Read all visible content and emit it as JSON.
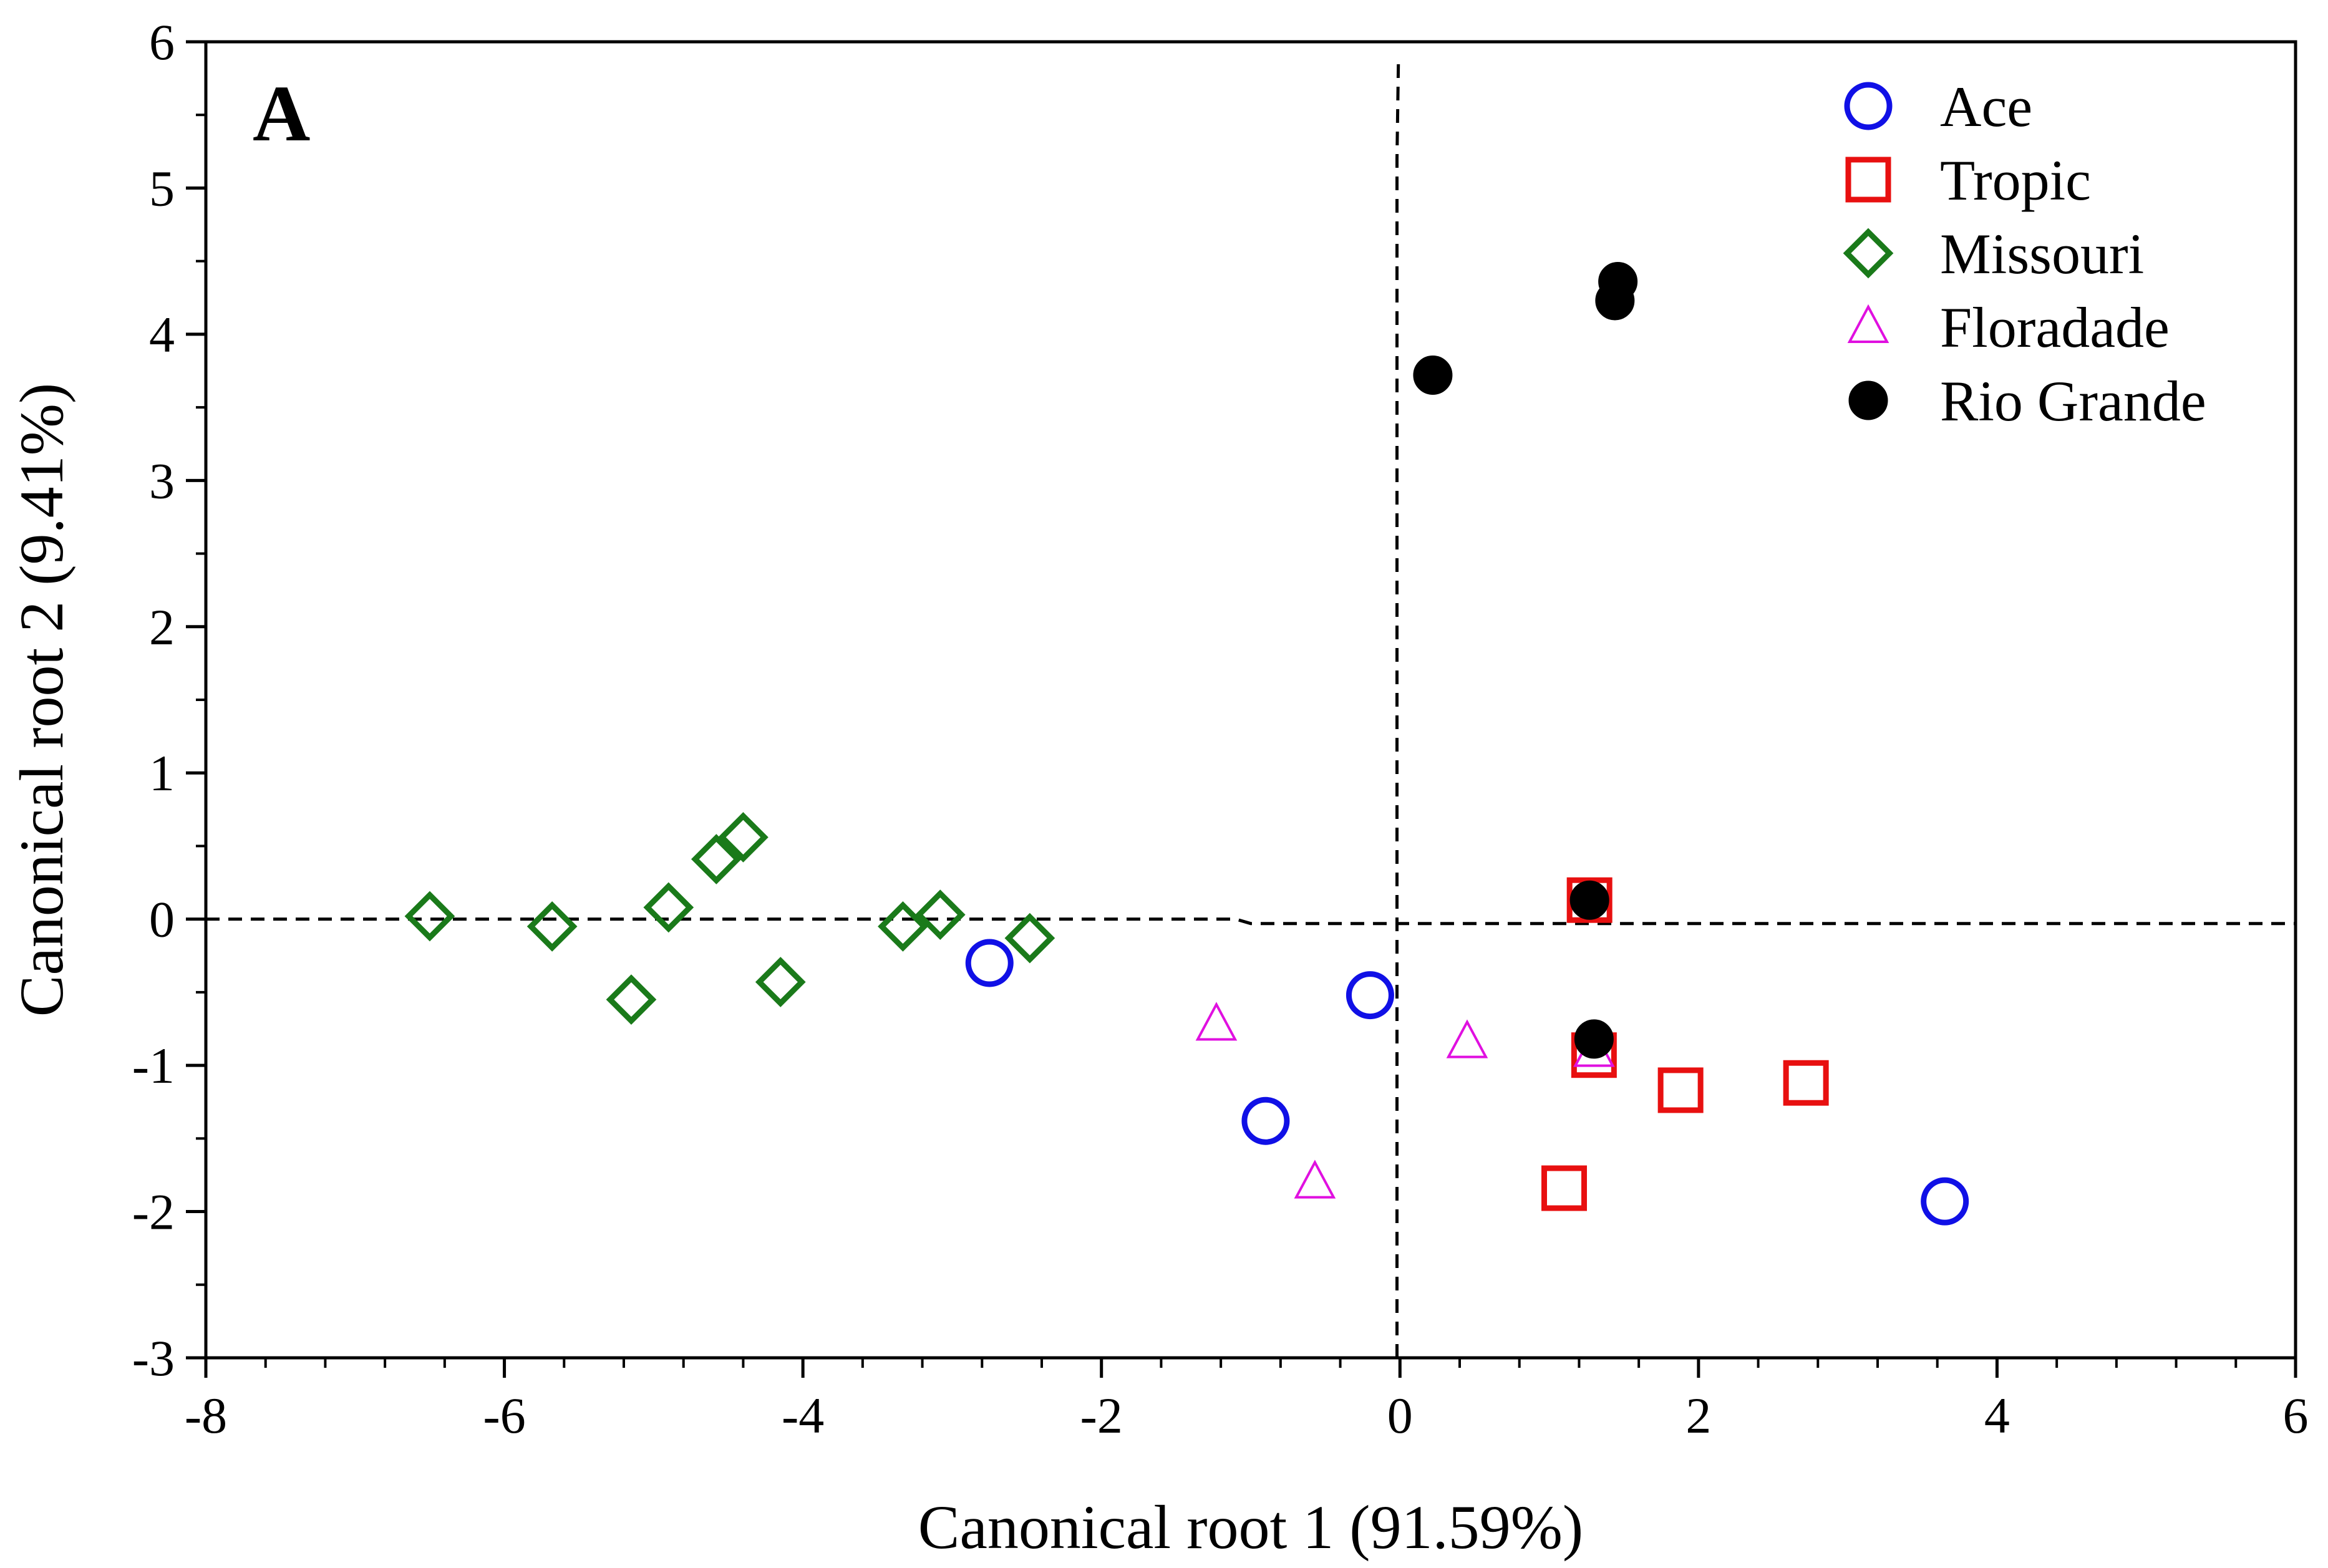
{
  "chart_data": {
    "type": "scatter",
    "panel_label": "A",
    "xlabel": "Canonical root 1 (91.59%)",
    "ylabel": "Canonical root 2 (9.41%)",
    "xlim": [
      -8,
      6
    ],
    "ylim": [
      -3,
      6
    ],
    "xticks": [
      "-8",
      "-6",
      "-4",
      "-2",
      "0",
      "2",
      "4",
      "6"
    ],
    "yticks": [
      "-3",
      "-2",
      "-1",
      "0",
      "1",
      "2",
      "3",
      "4",
      "5",
      "6"
    ],
    "legend_position": "top-right",
    "series": [
      {
        "name": "Ace",
        "marker": "circle-open",
        "color": "#1010e6",
        "points": [
          [
            -2.75,
            -0.3
          ],
          [
            -0.2,
            -0.52
          ],
          [
            -0.9,
            -1.38
          ],
          [
            3.65,
            -1.93
          ]
        ]
      },
      {
        "name": "Tropic",
        "marker": "square-open",
        "color": "#e81010",
        "points": [
          [
            1.27,
            0.13
          ],
          [
            1.3,
            -0.93
          ],
          [
            1.88,
            -1.17
          ],
          [
            2.72,
            -1.12
          ],
          [
            1.1,
            -1.84
          ]
        ]
      },
      {
        "name": "Missouri",
        "marker": "diamond-open",
        "color": "#1a7a1a",
        "points": [
          [
            -6.5,
            0.02
          ],
          [
            -5.68,
            -0.05
          ],
          [
            -4.9,
            0.08
          ],
          [
            -5.15,
            -0.55
          ],
          [
            -4.58,
            0.41
          ],
          [
            -4.4,
            0.56
          ],
          [
            -4.15,
            -0.43
          ],
          [
            -3.33,
            -0.05
          ],
          [
            -3.08,
            0.03
          ],
          [
            -2.48,
            -0.13
          ]
        ]
      },
      {
        "name": "Floradade",
        "marker": "triangle-open",
        "color": "#e010e0",
        "points": [
          [
            -1.23,
            -0.72
          ],
          [
            0.45,
            -0.84
          ],
          [
            -0.57,
            -1.8
          ],
          [
            1.3,
            -0.9
          ]
        ]
      },
      {
        "name": "Rio Grande",
        "marker": "circle-filled",
        "color": "#000000",
        "points": [
          [
            0.22,
            3.72
          ],
          [
            1.44,
            4.23
          ],
          [
            1.46,
            4.36
          ],
          [
            1.27,
            0.13
          ],
          [
            1.3,
            -0.82
          ]
        ]
      }
    ],
    "reference_lines": {
      "horizontal": [
        [
          -8,
          0.0
        ],
        [
          -1.1,
          0.0
        ],
        [
          -1.0,
          -0.03
        ],
        [
          6.0,
          -0.03
        ]
      ],
      "vertical": [
        [
          -0.02,
          -3.0
        ],
        [
          -0.02,
          5.2
        ],
        [
          -0.01,
          5.9
        ]
      ]
    }
  }
}
